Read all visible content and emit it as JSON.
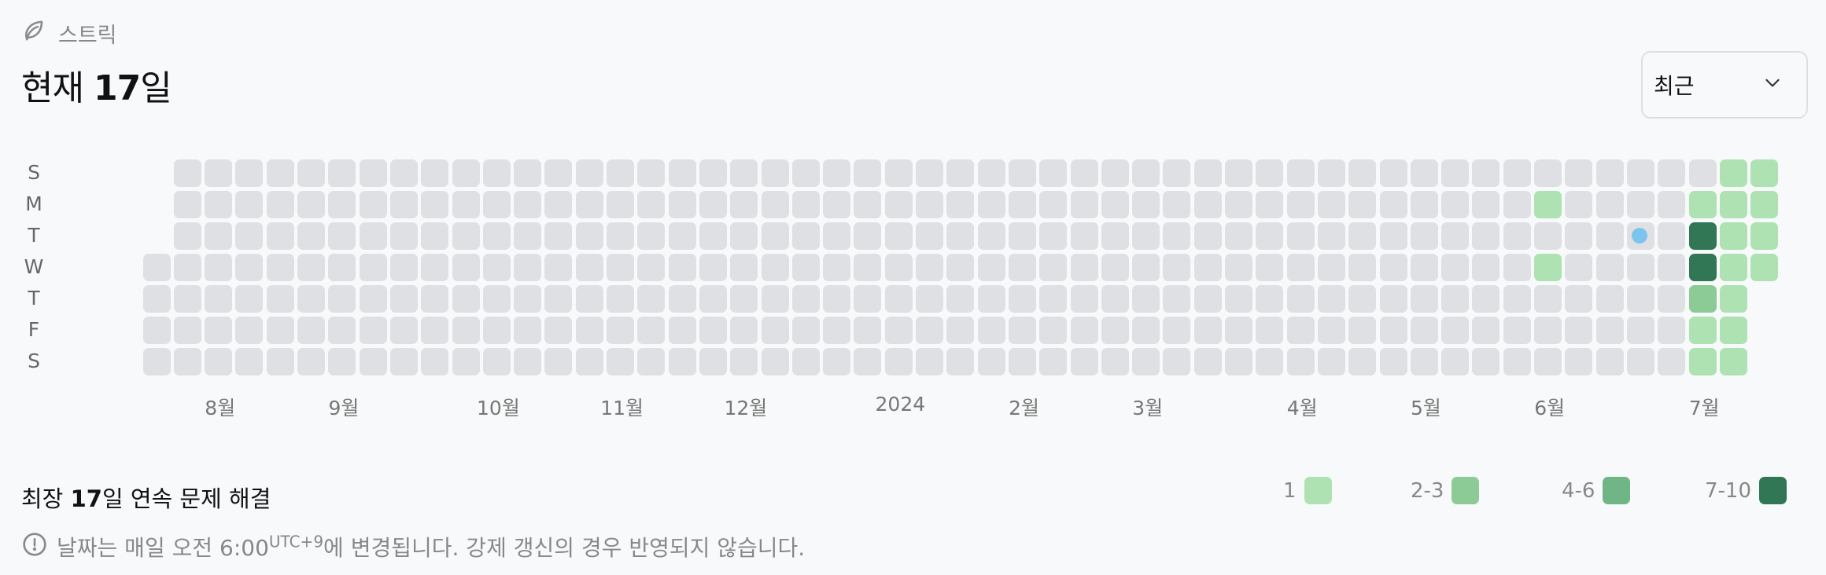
{
  "header": {
    "section_label": "스트릭",
    "icon": "leaf-icon"
  },
  "streak": {
    "prefix": "현재 ",
    "count": "17",
    "suffix": "일"
  },
  "filter": {
    "selected": "최근",
    "icon": "chevron-down-icon"
  },
  "weekdays": [
    "S",
    "M",
    "T",
    "W",
    "T",
    "F",
    "S"
  ],
  "months": [
    "8월",
    "9월",
    "10월",
    "11월",
    "12월",
    "2024",
    "2월",
    "3월",
    "4월",
    "5월",
    "6월",
    "7월"
  ],
  "colors": {
    "empty": "#dfe0e3",
    "level1": "#aee2b2",
    "level2": "#8cca96",
    "level3": "#6fb585",
    "level4": "#327755",
    "today": "#7cc4ee"
  },
  "calendar": {
    "weeks": 53,
    "first_week_start_row": 3,
    "last_week_end_row": 3,
    "active_cells": [
      {
        "week": 45,
        "day": 1,
        "level": 1
      },
      {
        "week": 45,
        "day": 3,
        "level": 1
      },
      {
        "week": 50,
        "day": 1,
        "level": 1
      },
      {
        "week": 50,
        "day": 2,
        "level": 4
      },
      {
        "week": 50,
        "day": 3,
        "level": 4
      },
      {
        "week": 50,
        "day": 4,
        "level": 2
      },
      {
        "week": 50,
        "day": 5,
        "level": 1
      },
      {
        "week": 50,
        "day": 6,
        "level": 1
      },
      {
        "week": 51,
        "day": 0,
        "level": 1
      },
      {
        "week": 51,
        "day": 1,
        "level": 1
      },
      {
        "week": 51,
        "day": 2,
        "level": 1
      },
      {
        "week": 51,
        "day": 3,
        "level": 1
      },
      {
        "week": 51,
        "day": 4,
        "level": 1
      },
      {
        "week": 51,
        "day": 5,
        "level": 1
      },
      {
        "week": 51,
        "day": 6,
        "level": 1
      },
      {
        "week": 52,
        "day": 0,
        "level": 1
      },
      {
        "week": 52,
        "day": 1,
        "level": 1
      },
      {
        "week": 52,
        "day": 2,
        "level": 1
      },
      {
        "week": 52,
        "day": 3,
        "level": 1
      }
    ]
  },
  "longest": {
    "prefix": "최장 ",
    "count": "17",
    "suffix": "일 연속 문제 해결"
  },
  "legend": [
    {
      "label": "1",
      "level": 1
    },
    {
      "label": "2-3",
      "level": 2
    },
    {
      "label": "4-6",
      "level": 3
    },
    {
      "label": "7-10",
      "level": 4
    }
  ],
  "note": {
    "text_before": "날짜는 매일 오전 6:00",
    "timezone": "UTC+9",
    "text_after": "에 변경됩니다. 강제 갱신의 경우 반영되지 않습니다.",
    "icon": "info-circle-icon"
  }
}
